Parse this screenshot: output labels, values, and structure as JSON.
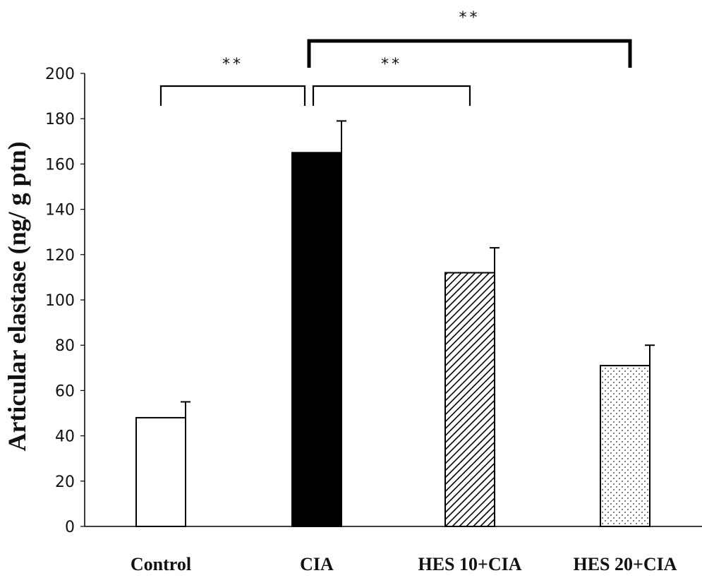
{
  "chart_data": {
    "type": "bar",
    "categories": [
      "Control",
      "CIA",
      "HES 10+CIA",
      "HES 20+CIA"
    ],
    "values": [
      48,
      165,
      112,
      71
    ],
    "errors": [
      7,
      14,
      11,
      9
    ],
    "fills": [
      "white",
      "black",
      "diagonal-hatch",
      "dots"
    ],
    "ylabel": "Articular elastase (ng/ g ptn)",
    "ylim": [
      0,
      200
    ],
    "yticks": [
      0,
      20,
      40,
      60,
      80,
      100,
      120,
      140,
      160,
      180,
      200
    ],
    "grid": false,
    "significance": [
      {
        "from": "Control",
        "to": "CIA",
        "label": "**"
      },
      {
        "from": "CIA",
        "to": "HES 10+CIA",
        "label": "**"
      },
      {
        "from": "CIA",
        "to": "HES 20+CIA",
        "label": "**"
      }
    ]
  }
}
